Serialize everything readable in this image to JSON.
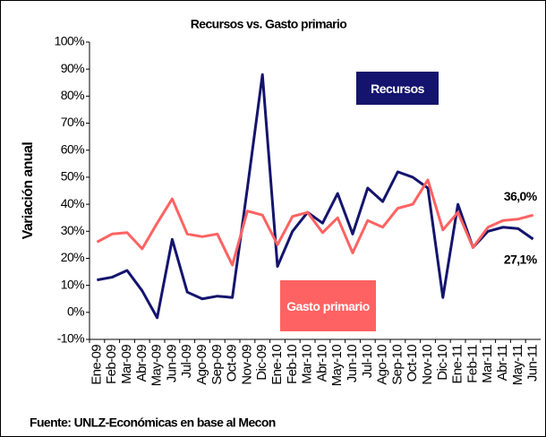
{
  "chart_data": {
    "type": "line",
    "title": "Recursos vs. Gasto primario",
    "y_label": "Variación anual",
    "source": "Fuente: UNLZ-Económicas en base al Mecon",
    "categories": [
      "Ene-09",
      "Feb-09",
      "Mar-09",
      "Abr-09",
      "May-09",
      "Jun-09",
      "Jul-09",
      "Ago-09",
      "Sep-09",
      "Oct-09",
      "Nov-09",
      "Dic-09",
      "Ene-10",
      "Feb-10",
      "Mar-10",
      "Abr-10",
      "May-10",
      "Jun-10",
      "Jul-10",
      "Ago-10",
      "Sep-10",
      "Oct-10",
      "Nov-10",
      "Dic-10",
      "Ene-11",
      "Feb-11",
      "Mar-11",
      "Abr-11",
      "May-11",
      "Jun-11"
    ],
    "series": [
      {
        "name": "Recursos",
        "color": "#14146e",
        "values": [
          12,
          13,
          15.5,
          8,
          -2,
          27,
          7.5,
          5,
          6,
          5.5,
          46,
          88,
          17,
          30,
          37,
          33,
          44,
          29,
          46,
          41,
          52,
          50,
          46,
          5.5,
          40,
          24,
          30,
          31.5,
          31,
          27.1
        ],
        "value_labels": [
          null,
          null,
          null,
          null,
          null,
          null,
          null,
          null,
          null,
          null,
          null,
          null,
          null,
          null,
          null,
          null,
          null,
          null,
          null,
          null,
          null,
          null,
          null,
          null,
          null,
          null,
          null,
          null,
          null,
          "27,1%"
        ]
      },
      {
        "name": "Gasto primario",
        "color": "#ff6262",
        "values": [
          26,
          29,
          29.5,
          23.5,
          33,
          42,
          29,
          28,
          29,
          17.5,
          37.5,
          36,
          25,
          35.5,
          37,
          29.5,
          35,
          22,
          34,
          31.5,
          38.5,
          40,
          49,
          30.5,
          37,
          24,
          31.5,
          34,
          34.5,
          36
        ],
        "value_labels": [
          null,
          null,
          null,
          null,
          null,
          null,
          null,
          null,
          null,
          null,
          null,
          null,
          null,
          null,
          null,
          null,
          null,
          null,
          null,
          null,
          null,
          null,
          null,
          null,
          null,
          null,
          null,
          null,
          null,
          "36,0%"
        ]
      }
    ],
    "ylim": [
      -10,
      100
    ],
    "yticks": [
      {
        "value": -10,
        "label": "-10%"
      },
      {
        "value": 0,
        "label": "0%"
      },
      {
        "value": 10,
        "label": "10%"
      },
      {
        "value": 20,
        "label": "20%"
      },
      {
        "value": 30,
        "label": "30%"
      },
      {
        "value": 40,
        "label": "40%"
      },
      {
        "value": 50,
        "label": "50%"
      },
      {
        "value": 60,
        "label": "60%"
      },
      {
        "value": 70,
        "label": "70%"
      },
      {
        "value": 80,
        "label": "80%"
      },
      {
        "value": 90,
        "label": "90%"
      },
      {
        "value": 100,
        "label": "100%"
      }
    ],
    "grid": false
  }
}
